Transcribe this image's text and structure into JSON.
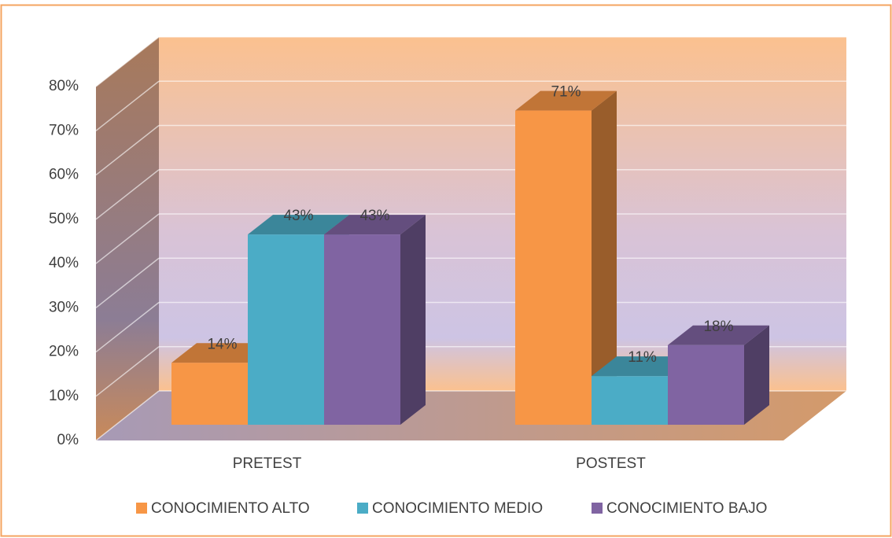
{
  "chart_data": {
    "type": "bar3d",
    "categories": [
      "PRETEST",
      "POSTEST"
    ],
    "series": [
      {
        "name": "CONOCIMIENTO ALTO",
        "color": "#f79646",
        "values": [
          14,
          71
        ],
        "value_labels": [
          "14%",
          "71%"
        ]
      },
      {
        "name": "CONOCIMIENTO MEDIO",
        "color": "#4bacc6",
        "values": [
          43,
          11
        ],
        "value_labels": [
          "43%",
          "11%"
        ]
      },
      {
        "name": "CONOCIMIENTO BAJO",
        "color": "#8064a2",
        "values": [
          43,
          18
        ],
        "value_labels": [
          "43%",
          "18%"
        ]
      }
    ],
    "ylim": [
      0,
      80
    ],
    "yticks": [
      {
        "value": 0,
        "label": "0%"
      },
      {
        "value": 10,
        "label": "10%"
      },
      {
        "value": 20,
        "label": "20%"
      },
      {
        "value": 30,
        "label": "30%"
      },
      {
        "value": 40,
        "label": "40%"
      },
      {
        "value": 50,
        "label": "50%"
      },
      {
        "value": 60,
        "label": "60%"
      },
      {
        "value": 70,
        "label": "70%"
      },
      {
        "value": 80,
        "label": "80%"
      }
    ],
    "grid": true,
    "legend": "bottom"
  }
}
